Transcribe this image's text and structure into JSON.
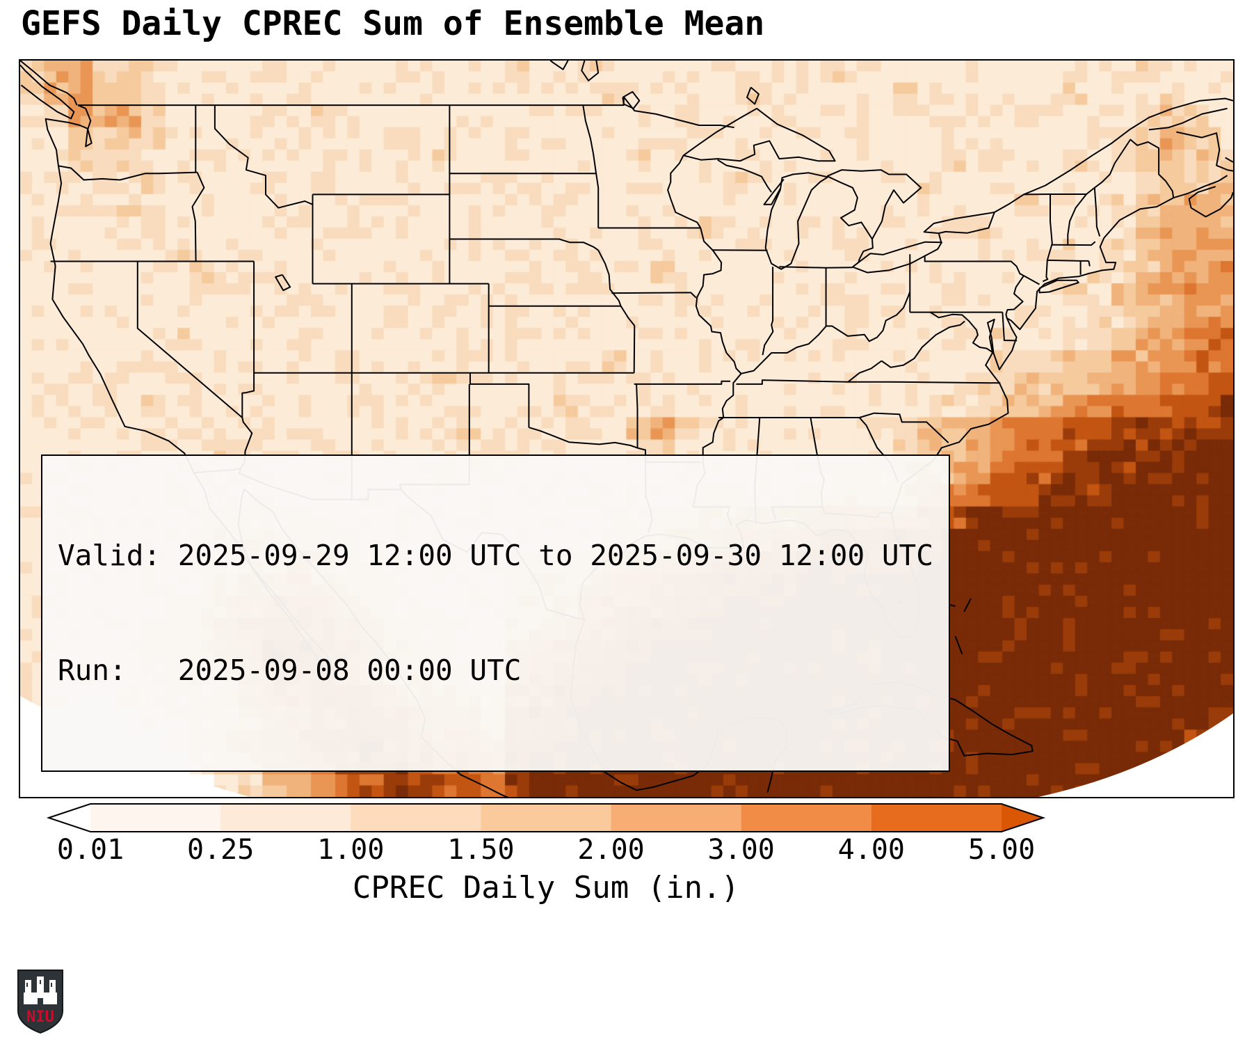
{
  "title": "GEFS Daily CPREC Sum of Ensemble Mean",
  "info_box": {
    "line1": "Valid: 2025-09-29 12:00 UTC to 2025-09-30 12:00 UTC",
    "line2": "Run:   2025-09-08 00:00 UTC"
  },
  "colorbar": {
    "label": "CPREC Daily Sum (in.)",
    "ticks": [
      "0.01",
      "0.25",
      "1.00",
      "1.50",
      "2.00",
      "3.00",
      "4.00",
      "5.00"
    ],
    "segment_colors": [
      "#fef6ee",
      "#fdead8",
      "#fcdcbc",
      "#fac99c",
      "#f7ad74",
      "#f18c46",
      "#e76c1d"
    ],
    "under_color": "#ffffff",
    "over_color": "#da5705",
    "outline_color": "#000000"
  },
  "logo": {
    "text": "NIU",
    "bg": "#2e3338",
    "accent": "#cf0a2c"
  },
  "chart_data": {
    "type": "heatmap",
    "title": "GEFS Daily CPREC Sum of Ensemble Mean",
    "units": "in.",
    "valid": "2025-09-29 12:00 UTC to 2025-09-30 12:00 UTC",
    "run": "2025-09-08 00:00 UTC",
    "colorbar_boundaries": [
      0.01,
      0.25,
      1.0,
      1.5,
      2.0,
      3.0,
      4.0,
      5.0
    ],
    "palette": [
      "#ffffff",
      "#fcebd7",
      "#f8dcbd",
      "#f5ca9d",
      "#f0b37b",
      "#e99655",
      "#dd7631",
      "#c35513",
      "#9a3c0a",
      "#782b06"
    ],
    "code_value_ranges": {
      "0": "<0.01",
      "1": "0.01-0.25",
      "2": "0.25-1.00",
      "3": "1.00-1.50",
      "4": "1.50-2.00",
      "5": "2.00-3.00",
      "6": "3.00-4.00",
      "7": "4.00-5.00",
      "8": ">5.00",
      "9": ">5.00 (max)"
    },
    "grid_cols": 50,
    "grid_rows": 33,
    "grid": [
      "34423211112111111111211211111111121111121112112111",
      "24533211111211111111111121111121111121111112111211",
      "12544211111121111111111111121111111111111211112321",
      "11323211111111121111211111111111112111111111223432",
      "11222111111111111211111112111111111111211112123332",
      "11121211111121111111111111111211111112111111112333",
      "11112111111111111111112111111111111111111211123344",
      "11111211111111121111111111112111111111121111123444",
      "11111121111111111111111111111111112111111112123444",
      "11111112111111111111111111211111111111111111223445",
      "11111111111211111111111111111111111111211112234455",
      "11112111111111121111111111111111112111111211223455",
      "11111121111111111111211111111111111111112112234556",
      "11111111111112111111111121111111111111112223344566",
      "11121111111111111211111111111111111111122333445667",
      "11111211111111111111112111111211111111223345566778",
      "11111112111111111121111113421111111223345667788888",
      "11111111211111111112111112311111111123345677888899",
      "12111111111111111211111111121111112234456778889999",
      "11111121111111111111111211112211223345567788899999",
      "11111111222211111111111112233444555667788899999999",
      "11111112333322111111111122344556677788999999999999",
      "11111112233432211111223345566777888889999999999999",
      "11111122344543221111233456677888999999999999999999",
      "11111123456654322111334567788999999999999999999999",
      "11111223567765432211345678889999999999999999999999",
      "11111223468876532211456788999999999999999999999999",
      "11111123357776533221567889999999999999999999999999",
      "11001122346677654332678899999999999999999999999999",
      "00000112234567765443788999999999999999999999999998",
      "00000012345678876554889999999999999999999999999980",
      "00000001234567887665899999999999999999999999999800",
      "00000000123456788776899999999999999999999999998000"
    ]
  }
}
